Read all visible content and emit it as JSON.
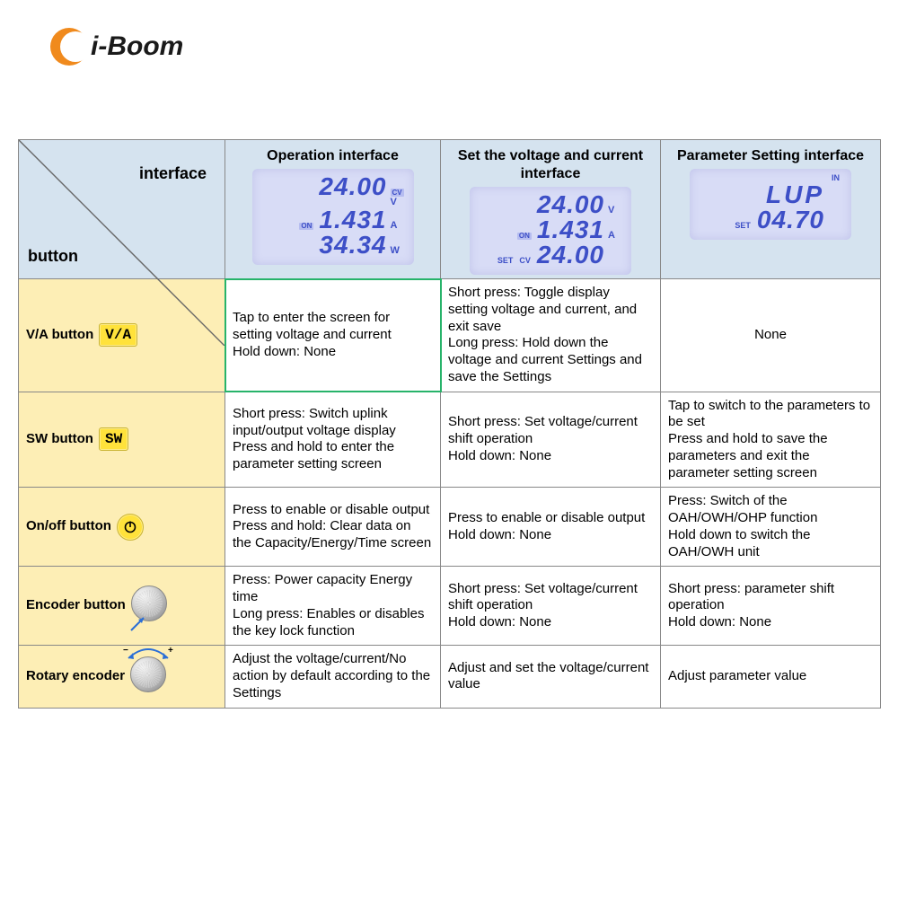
{
  "brand": {
    "name": "i-Boom",
    "crescent_color": "#f08a1d"
  },
  "diag": {
    "interface": "interface",
    "button": "button"
  },
  "columns": {
    "op": {
      "title": "Operation interface"
    },
    "set": {
      "title": "Set the voltage and current interface"
    },
    "param": {
      "title": "Parameter Setting interface"
    }
  },
  "lcd": {
    "op": {
      "l1": "24.00",
      "u1": "V",
      "badge1": "CV",
      "l2": "1.431",
      "u2": "A",
      "left2": "ON",
      "l3": "34.34",
      "u3": "W"
    },
    "set": {
      "l1": "24.00",
      "u1": "V",
      "l2": "1.431",
      "u2": "A",
      "left2": "ON",
      "l3": "24.00",
      "u3": "",
      "left3a": "SET",
      "left3b": "CV"
    },
    "param": {
      "top": "IN",
      "l2": "LUP",
      "l3": "04.70",
      "left3": "SET"
    }
  },
  "rows": {
    "va": {
      "label": "V/A button",
      "chip": "V/A",
      "op": "Tap to enter the screen for setting voltage and current\nHold down: None",
      "set": "Short press: Toggle display setting voltage and current, and exit save\nLong press: Hold down the voltage and current Settings and save the Settings",
      "param": "None"
    },
    "sw": {
      "label": "SW button",
      "chip": "SW",
      "op": "Short press: Switch uplink input/output voltage display\nPress and hold to enter the parameter setting screen",
      "set": "Short press: Set voltage/current shift operation\nHold down: None",
      "param": "Tap to switch to the parameters to be set\nPress and hold to save the parameters and exit the parameter setting screen"
    },
    "onoff": {
      "label": "On/off button",
      "op": "Press to enable or disable output\nPress and hold: Clear data on the Capacity/Energy/Time screen",
      "set": "Press to enable or disable output\nHold down: None",
      "param": "Press: Switch of the OAH/OWH/OHP function\nHold down to switch the OAH/OWH unit"
    },
    "enc": {
      "label": "Encoder button",
      "op": "Press: Power capacity Energy time\nLong press: Enables or disables the key lock function",
      "set": "Short press: Set voltage/current shift operation\nHold down: None",
      "param": "Short press: parameter shift operation\nHold down: None"
    },
    "rot": {
      "label": "Rotary encoder",
      "op": "Adjust the voltage/current/No action by default according to the Settings",
      "set": "Adjust and set the voltage/current value",
      "param": "Adjust parameter value"
    }
  },
  "colors": {
    "header_bg": "#d5e3ef",
    "rowlabel_bg": "#fdeeb5",
    "lcd_bg": "#d8dcf6",
    "lcd_fg": "#3d4fc7",
    "chip_bg": "#ffe23b",
    "greenbox": "#27b36a",
    "border": "#888888"
  }
}
